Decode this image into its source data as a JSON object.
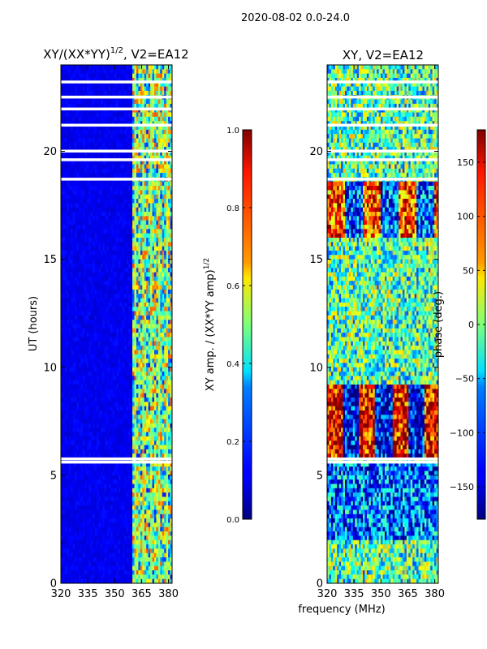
{
  "figure_title": "2020-08-02 0.0-24.0",
  "xlabel": "frequency (MHz)",
  "chart_data": [
    {
      "type": "heatmap",
      "title": "XY/(XX*YY)",
      "title_exponent": "1/2",
      "title_suffix": ", V2=EA12",
      "ylabel": "UT (hours)",
      "xlim": [
        320,
        382
      ],
      "ylim": [
        0,
        24
      ],
      "x_ticks": [
        {
          "value": 320,
          "label": "320"
        },
        {
          "value": 335,
          "label": "335"
        },
        {
          "value": 350,
          "label": "350"
        },
        {
          "value": 365,
          "label": "365"
        },
        {
          "value": 380,
          "label": "380"
        }
      ],
      "y_ticks": [
        {
          "value": 0,
          "label": "0"
        },
        {
          "value": 5,
          "label": "5"
        },
        {
          "value": 10,
          "label": "10"
        },
        {
          "value": 15,
          "label": "15"
        },
        {
          "value": 20,
          "label": "20"
        }
      ],
      "colorbar": {
        "label": "XY amp. / (XX*YY amp)",
        "label_exponent": "1/2",
        "range": [
          0.0,
          1.0
        ],
        "ticks": [
          {
            "value": 0.0,
            "label": "0.0"
          },
          {
            "value": 0.2,
            "label": "0.2"
          },
          {
            "value": 0.4,
            "label": "0.4"
          },
          {
            "value": 0.6,
            "label": "0.6"
          },
          {
            "value": 0.8,
            "label": "0.8"
          },
          {
            "value": 1.0,
            "label": "1.0"
          }
        ]
      },
      "gaps_hours": [
        5.6,
        5.75,
        18.7,
        19.6,
        20.0,
        21.2,
        21.95,
        22.5,
        23.2
      ],
      "high_band_mhz": [
        360,
        382
      ]
    },
    {
      "type": "heatmap",
      "title": "XY, V2=EA12",
      "xlim": [
        320,
        382
      ],
      "ylim": [
        0,
        24
      ],
      "x_ticks": [
        {
          "value": 320,
          "label": "320"
        },
        {
          "value": 335,
          "label": "335"
        },
        {
          "value": 350,
          "label": "350"
        },
        {
          "value": 365,
          "label": "365"
        },
        {
          "value": 380,
          "label": "380"
        }
      ],
      "y_ticks": [
        {
          "value": 0,
          "label": "0"
        },
        {
          "value": 5,
          "label": "5"
        },
        {
          "value": 10,
          "label": "10"
        },
        {
          "value": 15,
          "label": "15"
        },
        {
          "value": 20,
          "label": "20"
        }
      ],
      "colorbar": {
        "label": "phase (deg.)",
        "range": [
          -180,
          180
        ],
        "ticks": [
          {
            "value": -150,
            "label": "−150"
          },
          {
            "value": -100,
            "label": "−100"
          },
          {
            "value": -50,
            "label": "−50"
          },
          {
            "value": 0,
            "label": "0"
          },
          {
            "value": 50,
            "label": "50"
          },
          {
            "value": 100,
            "label": "100"
          },
          {
            "value": 150,
            "label": "150"
          }
        ]
      },
      "gaps_hours": [
        5.6,
        5.75,
        18.7,
        19.6,
        20.0,
        21.2,
        21.95,
        22.5,
        23.2
      ]
    }
  ]
}
